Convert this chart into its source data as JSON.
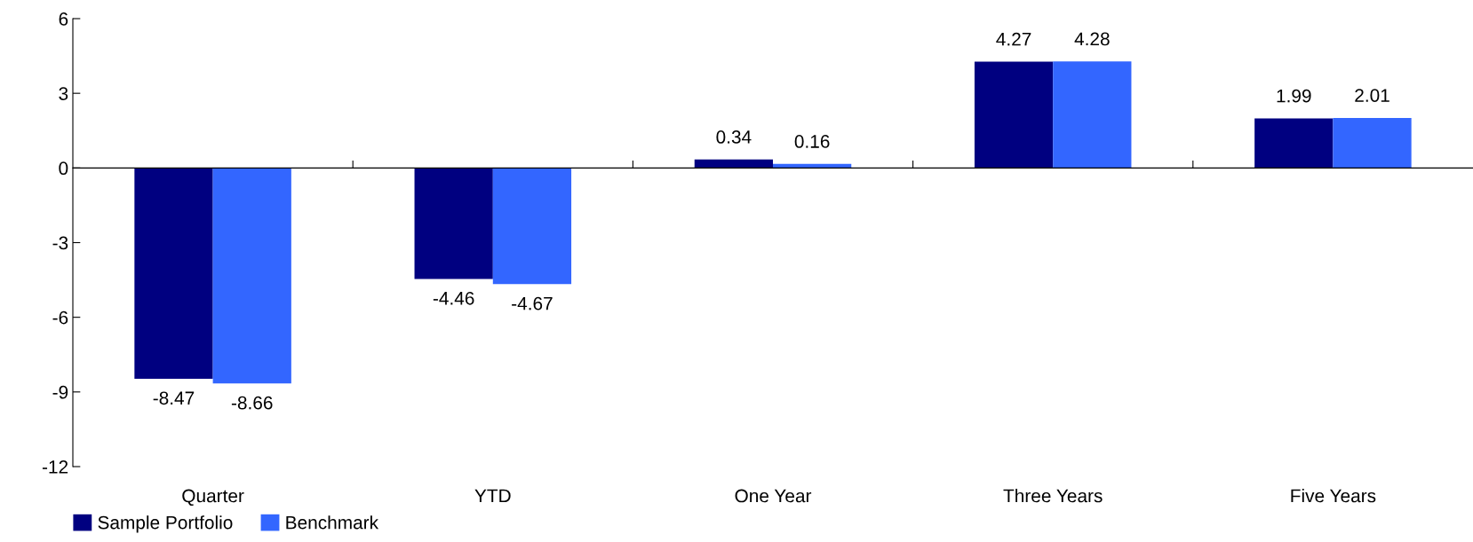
{
  "chart_data": {
    "type": "bar",
    "categories": [
      "Quarter",
      "YTD",
      "One Year",
      "Three Years",
      "Five Years"
    ],
    "series": [
      {
        "name": "Sample Portfolio",
        "color": "#000080",
        "values": [
          -8.47,
          -4.46,
          0.34,
          4.27,
          1.99
        ]
      },
      {
        "name": "Benchmark",
        "color": "#3366ff",
        "values": [
          -8.66,
          -4.67,
          0.16,
          4.28,
          2.01
        ]
      }
    ],
    "ylim": [
      -12,
      6
    ],
    "yticks": [
      -12,
      -9,
      -6,
      -3,
      0,
      3,
      6
    ],
    "data_labels": true,
    "legend": "bottom left"
  }
}
